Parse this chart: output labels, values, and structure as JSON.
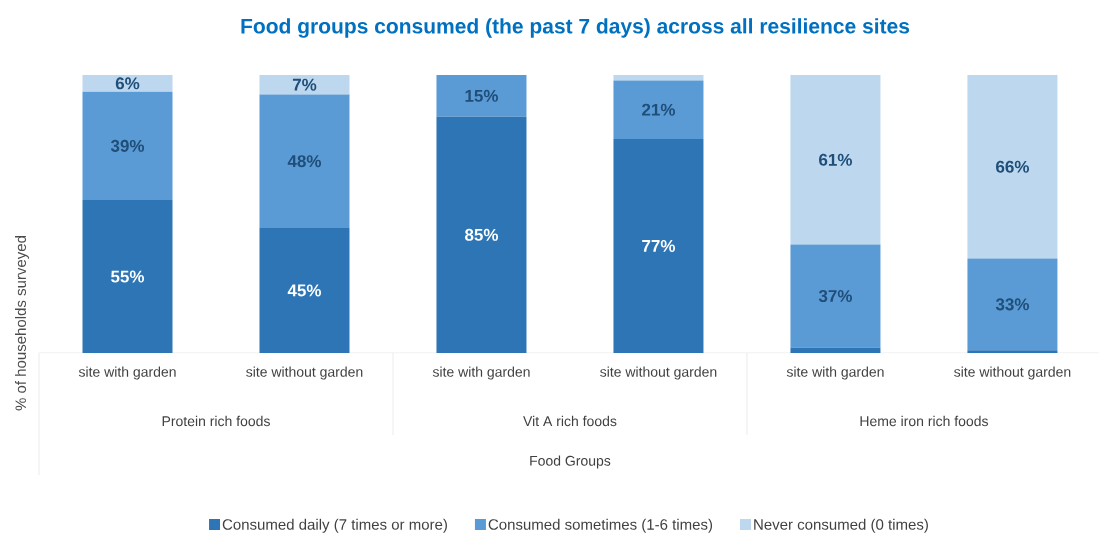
{
  "chart_data": {
    "type": "bar",
    "stacked": true,
    "legend": "bottom",
    "title": "Food groups consumed (the past 7 days) across all resilience sites",
    "ylabel": "% of households surveyed",
    "categories": [
      "site with garden",
      "site without garden",
      "site with garden",
      "site without garden",
      "site with garden",
      "site without garden"
    ],
    "annotations": [
      "Protein rich foods",
      "Vit A rich foods",
      "Heme iron rich foods",
      "Food Groups"
    ],
    "tick_labels": "x",
    "series": [
      {
        "name": "Consumed daily (7 times or more)",
        "color": "#2e75b6",
        "values": [
          55,
          45,
          85,
          77,
          2,
          1
        ],
        "value_labels": [
          "55%",
          "45%",
          "85%",
          "77%",
          null,
          null
        ]
      },
      {
        "name": "Consumed sometimes (1-6 times)",
        "color": "#5b9bd5",
        "values": [
          39,
          48,
          15,
          21,
          37,
          33
        ],
        "value_labels": [
          "39%",
          "48%",
          "15%",
          "21%",
          "37%",
          "33%"
        ]
      },
      {
        "name": "Never consumed (0 times)",
        "color": "#bdd7ee",
        "values": [
          6,
          7,
          0,
          2,
          61,
          66
        ],
        "value_labels": [
          "6%",
          "7%",
          null,
          null,
          "61%",
          "66%"
        ]
      }
    ]
  }
}
